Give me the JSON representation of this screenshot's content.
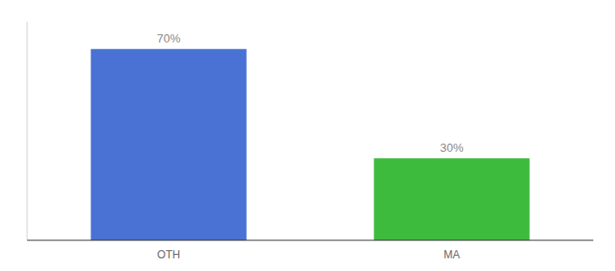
{
  "chart_data": {
    "type": "bar",
    "categories": [
      "OTH",
      "MA"
    ],
    "values": [
      70,
      30
    ],
    "value_labels": [
      "70%",
      "30%"
    ],
    "colors": [
      "#4a72d4",
      "#3dbb3d"
    ],
    "ylim": [
      0,
      80
    ],
    "data_labels": true,
    "tick_labels": "x",
    "grid": false
  }
}
